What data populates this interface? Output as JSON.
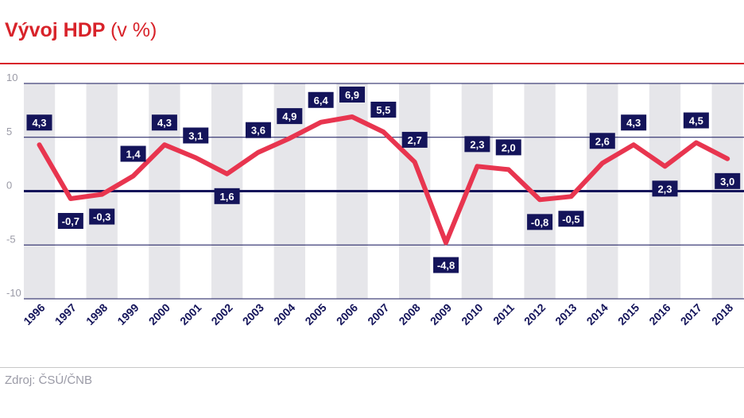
{
  "header": {
    "title": "Vývoj HDP",
    "title_unit": "(v %)"
  },
  "footer": {
    "source": "Zdroj: ČSÚ/ČNB"
  },
  "colors": {
    "accent": "#d8232a",
    "line": "#e8354f",
    "label_bg": "#14145a",
    "axis_line": "#14145a",
    "band": "#e6e6ea",
    "tick_text": "#9a9aa6"
  },
  "chart_data": {
    "type": "line",
    "title": "Vývoj HDP (v %)",
    "x": [
      "1996",
      "1997",
      "1998",
      "1999",
      "2000",
      "2001",
      "2002",
      "2003",
      "2004",
      "2005",
      "2006",
      "2007",
      "2008",
      "2009",
      "2010",
      "2011",
      "2012",
      "2013",
      "2014",
      "2015",
      "2016",
      "2017",
      "2018"
    ],
    "series": [
      {
        "values": [
          4.3,
          -0.7,
          -0.3,
          1.4,
          4.3,
          3.1,
          1.6,
          3.6,
          4.9,
          6.4,
          6.9,
          5.5,
          2.7,
          -4.8,
          2.3,
          2.0,
          -0.8,
          -0.5,
          2.6,
          4.3,
          2.3,
          4.5,
          3.0
        ],
        "labels": [
          "4,3",
          "-0,7",
          "-0,3",
          "1,4",
          "4,3",
          "3,1",
          "1,6",
          "3,6",
          "4,9",
          "6,4",
          "6,9",
          "5,5",
          "2,7",
          "-4,8",
          "2,3",
          "2,0",
          "-0,8",
          "-0,5",
          "2,6",
          "4,3",
          "2,3",
          "4,5",
          "3,0"
        ]
      }
    ],
    "y_ticks": [
      10,
      5,
      0,
      -5,
      -10
    ],
    "y_tick_labels": [
      "10",
      "5",
      "0",
      "-5",
      "-10"
    ],
    "ylim": [
      -10,
      10
    ],
    "grid": true,
    "legend": "none",
    "xlabel": "",
    "ylabel": ""
  }
}
